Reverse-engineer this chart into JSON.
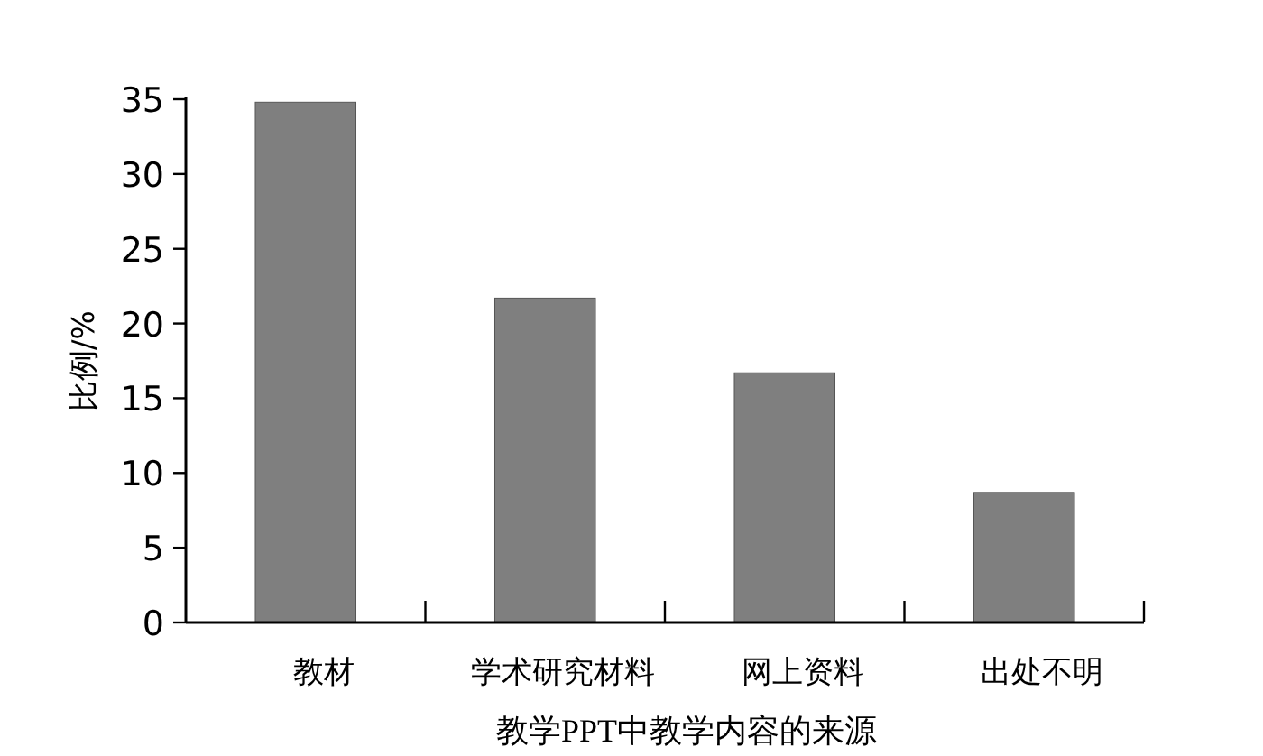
{
  "chart_data": {
    "type": "bar",
    "categories": [
      "教材",
      "学术研究材料",
      "网上资料",
      "出处不明"
    ],
    "values": [
      34.8,
      21.7,
      16.7,
      8.7
    ],
    "color": "#7f7f7f",
    "xlabel": "教学PPT中教学内容的来源",
    "ylabel": "比例/%",
    "ylim": [
      0,
      35
    ],
    "yticks": [
      0,
      5,
      10,
      15,
      20,
      25,
      30,
      35
    ]
  }
}
